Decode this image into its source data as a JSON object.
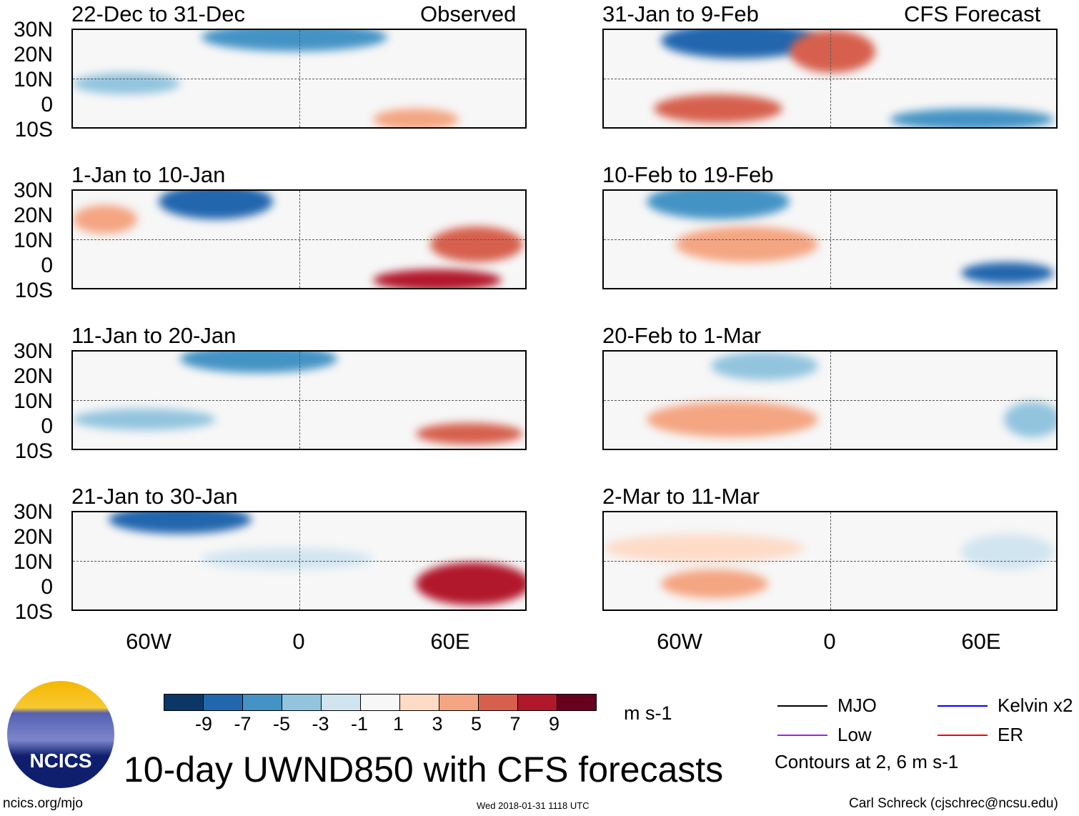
{
  "left_column": {
    "label": "Observed",
    "panels": [
      "22-Dec to 31-Dec",
      "1-Jan to 10-Jan",
      "11-Jan to 20-Jan",
      "21-Jan to 30-Jan"
    ]
  },
  "right_column": {
    "label": "CFS Forecast",
    "panels": [
      "31-Jan to 9-Feb",
      "10-Feb to 19-Feb",
      "20-Feb to 1-Mar",
      "2-Mar to 11-Mar"
    ]
  },
  "lat_labels": [
    "30N",
    "20N",
    "10N",
    "0",
    "10S"
  ],
  "lon_labels": [
    "60W",
    "0",
    "60E"
  ],
  "colorbar": {
    "ticks": [
      "-9",
      "-7",
      "-5",
      "-3",
      "-1",
      "1",
      "3",
      "5",
      "7",
      "9"
    ],
    "colors": [
      "#0b3767",
      "#2266ae",
      "#4493c5",
      "#92c4de",
      "#d1e5f0",
      "#f7f7f7",
      "#fddbc7",
      "#f4a582",
      "#d6604d",
      "#b2182b",
      "#67001f"
    ],
    "units": "m s-1"
  },
  "legend": {
    "items": [
      {
        "label": "MJO",
        "color": "#000000"
      },
      {
        "label": "Kelvin x2",
        "color": "#0000ff"
      },
      {
        "label": "Low",
        "color": "#a020f0"
      },
      {
        "label": "ER",
        "color": "#ff0000"
      }
    ],
    "note": "Contours at 2, 6 m s-1"
  },
  "title": "10-day UWND850 with CFS forecasts",
  "logo_text": "NCICS",
  "footer": {
    "url": "ncics.org/mjo",
    "timestamp": "Wed 2018-01-31 1118 UTC",
    "author": "Carl Schreck (cjschrec@ncsu.edu)"
  }
}
